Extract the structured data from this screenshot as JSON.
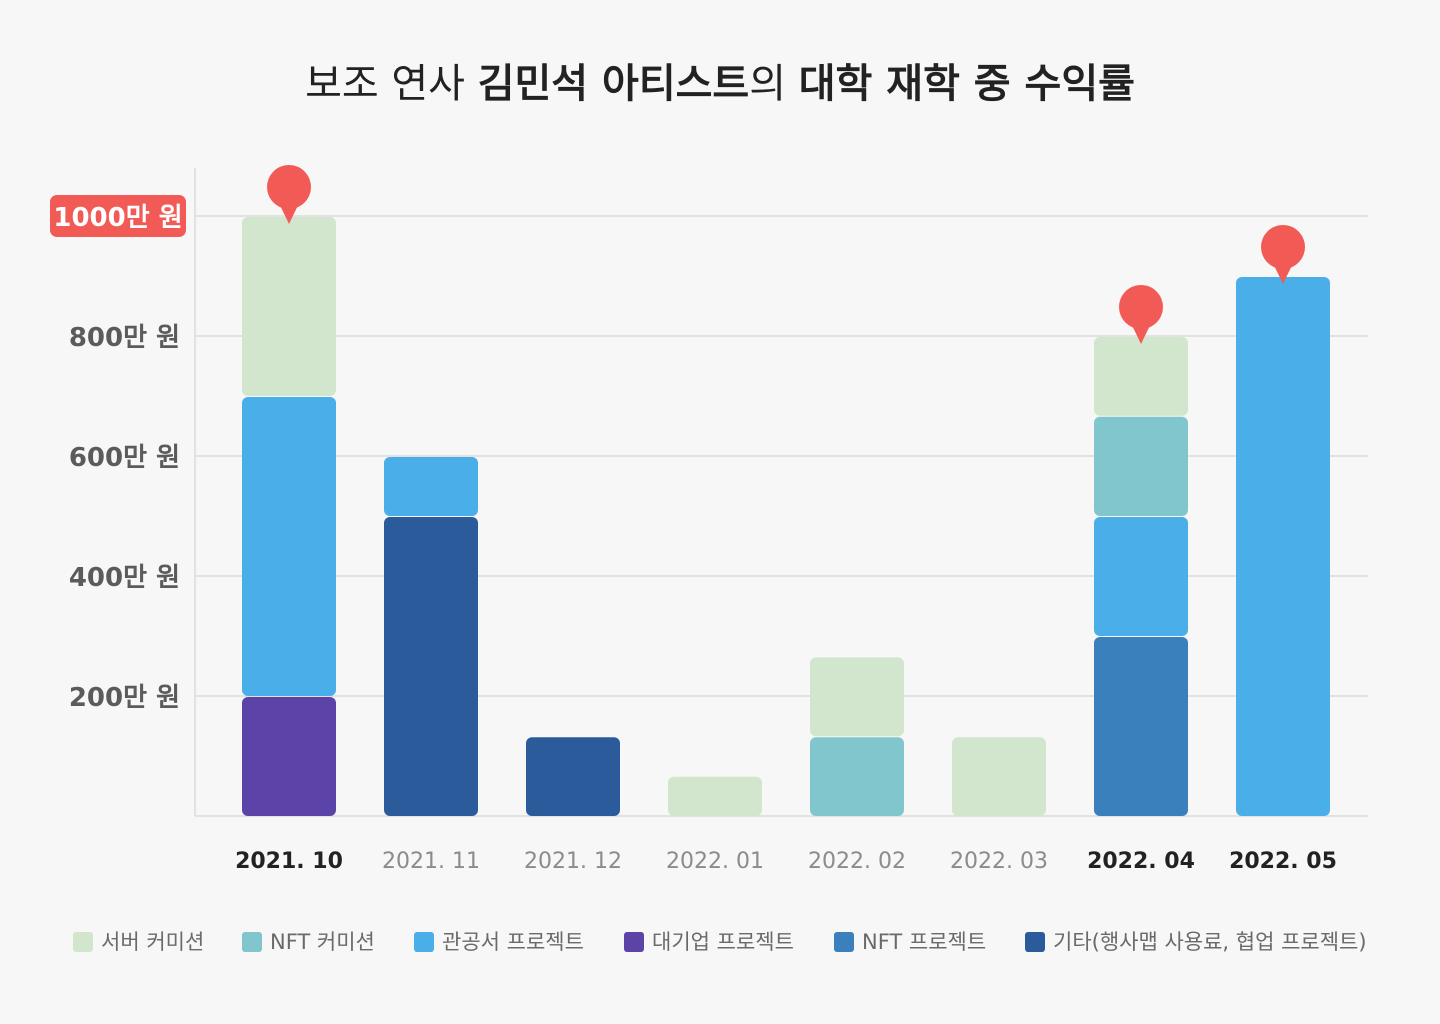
{
  "chart_data": {
    "type": "bar",
    "stacked": true,
    "title_parts": [
      {
        "text": "보조 연사 ",
        "bold": false
      },
      {
        "text": "김민석 아티스트",
        "bold": true
      },
      {
        "text": "의 ",
        "bold": false
      },
      {
        "text": "대학 재학 중 수익률",
        "bold": true
      }
    ],
    "categories": [
      "2021. 10",
      "2021. 11",
      "2021. 12",
      "2022. 01",
      "2022. 02",
      "2022. 03",
      "2022. 04",
      "2022. 05"
    ],
    "bold_categories": [
      "2021. 10",
      "2022. 04",
      "2022. 05"
    ],
    "marked_categories": [
      "2021. 10",
      "2022. 04",
      "2022. 05"
    ],
    "ylim": [
      0,
      1050
    ],
    "yticks": [
      {
        "value": 200,
        "label": "200만 원",
        "highlight": false
      },
      {
        "value": 400,
        "label": "400만 원",
        "highlight": false
      },
      {
        "value": 600,
        "label": "600만 원",
        "highlight": false
      },
      {
        "value": 800,
        "label": "800만 원",
        "highlight": false
      },
      {
        "value": 1000,
        "label": "1000만 원",
        "highlight": true
      }
    ],
    "grid": true,
    "legend_position": "bottom",
    "series": [
      {
        "name": "기타(행사맵 사용료, 협업 프로젝트)",
        "color": "#2c5b9c",
        "values": [
          0,
          500,
          133,
          0,
          0,
          0,
          0,
          0
        ]
      },
      {
        "name": "NFT 프로젝트",
        "color": "#3a80bd",
        "values": [
          0,
          0,
          0,
          0,
          0,
          0,
          300,
          0
        ]
      },
      {
        "name": "대기업 프로젝트",
        "color": "#5c43a8",
        "values": [
          200,
          0,
          0,
          0,
          0,
          0,
          0,
          0
        ]
      },
      {
        "name": "관공서 프로젝트",
        "color": "#4aaee8",
        "values": [
          500,
          100,
          0,
          0,
          0,
          0,
          200,
          900
        ]
      },
      {
        "name": "NFT 커미션",
        "color": "#81c6cc",
        "values": [
          0,
          0,
          0,
          0,
          133,
          0,
          167,
          0
        ]
      },
      {
        "name": "서버 커미션",
        "color": "#d1e6cc",
        "values": [
          300,
          0,
          0,
          67,
          133,
          133,
          133,
          0
        ]
      }
    ],
    "legend_order": [
      "서버 커미션",
      "NFT 커미션",
      "관공서 프로젝트",
      "대기업 프로젝트",
      "NFT 프로젝트",
      "기타(행사맵 사용료, 협업 프로젝트)"
    ],
    "colors": {
      "highlight": "#f25a55",
      "grid": "#e2e2e2",
      "axis_text": "#5b5b5b",
      "muted_text": "#8b8b8b",
      "dark_text": "#222222"
    }
  }
}
